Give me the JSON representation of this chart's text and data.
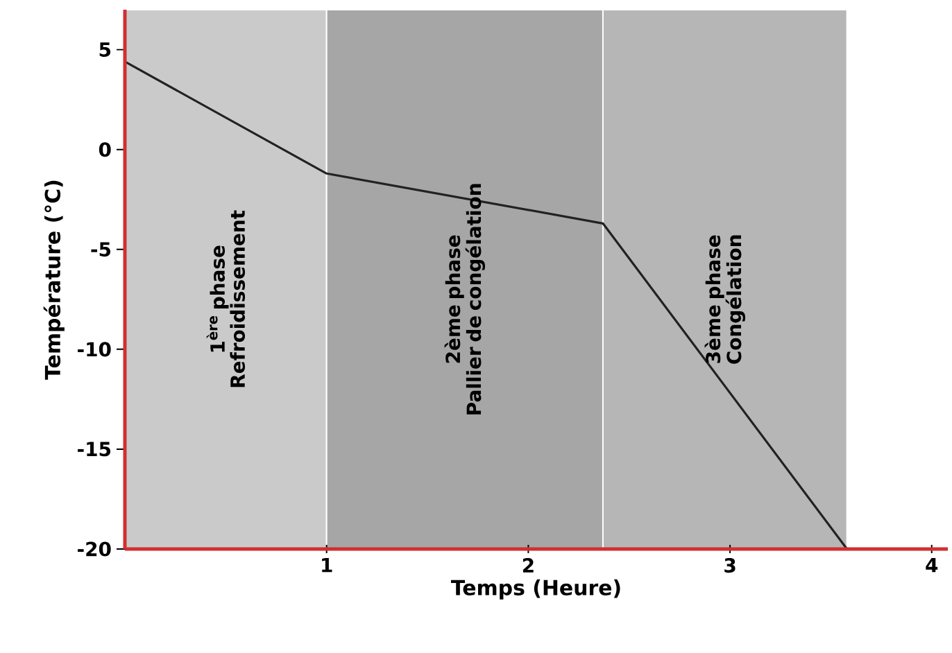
{
  "chart_data": {
    "type": "line",
    "xlabel": "Temps (Heure)",
    "ylabel": "Température (°C)",
    "x": [
      0,
      1,
      2.37,
      3.58
    ],
    "series": [
      {
        "color": "#222222",
        "values": [
          4.4,
          -1.2,
          -3.7,
          -20
        ]
      }
    ],
    "xlim": [
      0,
      4.08
    ],
    "ylim": [
      -20,
      7
    ],
    "xticks": [
      1,
      2,
      3,
      4
    ],
    "yticks": [
      5,
      0,
      -5,
      -10,
      -15,
      -20
    ],
    "bands": [
      {
        "axis": "x",
        "from": 0,
        "to": 1,
        "label": "1$^{ère}$ phase\nRefroidissement",
        "color": "#cacaca"
      },
      {
        "axis": "x",
        "from": 1,
        "to": 2.37,
        "label": "2ème phase\nPallier de congélation",
        "color": "#a6a6a6"
      },
      {
        "axis": "x",
        "from": 2.37,
        "to": 3.58,
        "label": "3ème phase\nCongélation",
        "color": "#b6b6b6"
      }
    ],
    "grid": false,
    "marker": "none",
    "line_style": "solid"
  }
}
